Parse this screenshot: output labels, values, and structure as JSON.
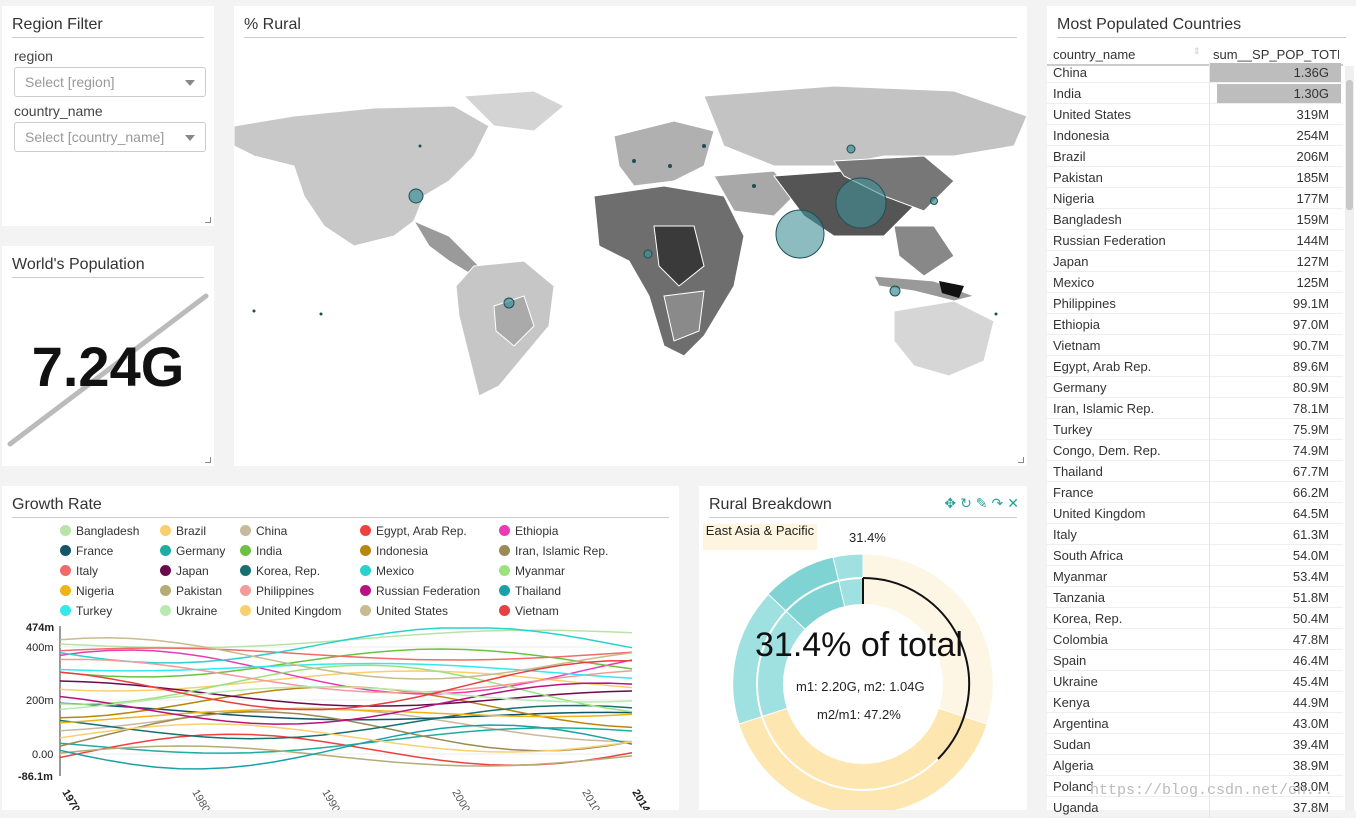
{
  "region_filter": {
    "title": "Region Filter",
    "region_label": "region",
    "region_placeholder": "Select [region]",
    "country_label": "country_name",
    "country_placeholder": "Select [country_name]"
  },
  "world_population": {
    "title": "World's Population",
    "value": "7.24G"
  },
  "rural_map": {
    "title": "% Rural"
  },
  "growth_rate": {
    "title": "Growth Rate",
    "legend": [
      {
        "name": "Bangladesh",
        "color": "#b7e4a6"
      },
      {
        "name": "Brazil",
        "color": "#f8cf6b"
      },
      {
        "name": "China",
        "color": "#c7b99c"
      },
      {
        "name": "Egypt, Arab Rep.",
        "color": "#ef4040"
      },
      {
        "name": "Ethiopia",
        "color": "#ea3bb4"
      },
      {
        "name": "France",
        "color": "#125566"
      },
      {
        "name": "Germany",
        "color": "#20aca0"
      },
      {
        "name": "India",
        "color": "#6ac240"
      },
      {
        "name": "Indonesia",
        "color": "#b8860b"
      },
      {
        "name": "Iran, Islamic Rep.",
        "color": "#9a8a56"
      },
      {
        "name": "Italy",
        "color": "#f06a6a"
      },
      {
        "name": "Japan",
        "color": "#6a0a4a"
      },
      {
        "name": "Korea, Rep.",
        "color": "#16706f"
      },
      {
        "name": "Mexico",
        "color": "#2cd0cc"
      },
      {
        "name": "Myanmar",
        "color": "#9be27e"
      },
      {
        "name": "Nigeria",
        "color": "#f0b21b"
      },
      {
        "name": "Pakistan",
        "color": "#b3ac74"
      },
      {
        "name": "Philippines",
        "color": "#f59a9a"
      },
      {
        "name": "Russian Federation",
        "color": "#b8127f"
      },
      {
        "name": "Thailand",
        "color": "#1aa0a8"
      },
      {
        "name": "Turkey",
        "color": "#35e8ea"
      },
      {
        "name": "Ukraine",
        "color": "#b9e9b0"
      },
      {
        "name": "United Kingdom",
        "color": "#f8d06e"
      },
      {
        "name": "United States",
        "color": "#c8bb90"
      },
      {
        "name": "Vietnam",
        "color": "#e84040"
      }
    ],
    "y_ticks": [
      "474m",
      "400m",
      "200m",
      "0.00",
      "-86.1m"
    ],
    "x_ticks": [
      "1970",
      "1980",
      "1990",
      "2000",
      "2010",
      "2014"
    ]
  },
  "rural_breakdown": {
    "title": "Rural Breakdown",
    "crumb": "East Asia & Pacific",
    "crumb_pct": "31.4%",
    "center_main": "31.4% of total",
    "center_m": "m1: 2.20G, m2: 1.04G",
    "center_ratio": "m2/m1: 47.2%"
  },
  "most_populated": {
    "title": "Most Populated Countries",
    "col_name": "country_name",
    "col_value": "sum__SP_POP_TOTL",
    "rows": [
      {
        "name": "China",
        "value": "1.36G",
        "frac": 1.0
      },
      {
        "name": "India",
        "value": "1.30G",
        "frac": 0.95
      },
      {
        "name": "United States",
        "value": "319M",
        "frac": 0.0
      },
      {
        "name": "Indonesia",
        "value": "254M",
        "frac": 0.0
      },
      {
        "name": "Brazil",
        "value": "206M",
        "frac": 0.0
      },
      {
        "name": "Pakistan",
        "value": "185M",
        "frac": 0.0
      },
      {
        "name": "Nigeria",
        "value": "177M",
        "frac": 0.0
      },
      {
        "name": "Bangladesh",
        "value": "159M",
        "frac": 0.0
      },
      {
        "name": "Russian Federation",
        "value": "144M",
        "frac": 0.0
      },
      {
        "name": "Japan",
        "value": "127M",
        "frac": 0.0
      },
      {
        "name": "Mexico",
        "value": "125M",
        "frac": 0.0
      },
      {
        "name": "Philippines",
        "value": "99.1M",
        "frac": 0.0
      },
      {
        "name": "Ethiopia",
        "value": "97.0M",
        "frac": 0.0
      },
      {
        "name": "Vietnam",
        "value": "90.7M",
        "frac": 0.0
      },
      {
        "name": "Egypt, Arab Rep.",
        "value": "89.6M",
        "frac": 0.0
      },
      {
        "name": "Germany",
        "value": "80.9M",
        "frac": 0.0
      },
      {
        "name": "Iran, Islamic Rep.",
        "value": "78.1M",
        "frac": 0.0
      },
      {
        "name": "Turkey",
        "value": "75.9M",
        "frac": 0.0
      },
      {
        "name": "Congo, Dem. Rep.",
        "value": "74.9M",
        "frac": 0.0
      },
      {
        "name": "Thailand",
        "value": "67.7M",
        "frac": 0.0
      },
      {
        "name": "France",
        "value": "66.2M",
        "frac": 0.0
      },
      {
        "name": "United Kingdom",
        "value": "64.5M",
        "frac": 0.0
      },
      {
        "name": "Italy",
        "value": "61.3M",
        "frac": 0.0
      },
      {
        "name": "South Africa",
        "value": "54.0M",
        "frac": 0.0
      },
      {
        "name": "Myanmar",
        "value": "53.4M",
        "frac": 0.0
      },
      {
        "name": "Tanzania",
        "value": "51.8M",
        "frac": 0.0
      },
      {
        "name": "Korea, Rep.",
        "value": "50.4M",
        "frac": 0.0
      },
      {
        "name": "Colombia",
        "value": "47.8M",
        "frac": 0.0
      },
      {
        "name": "Spain",
        "value": "46.4M",
        "frac": 0.0
      },
      {
        "name": "Ukraine",
        "value": "45.4M",
        "frac": 0.0
      },
      {
        "name": "Kenya",
        "value": "44.9M",
        "frac": 0.0
      },
      {
        "name": "Argentina",
        "value": "43.0M",
        "frac": 0.0
      },
      {
        "name": "Sudan",
        "value": "39.4M",
        "frac": 0.0
      },
      {
        "name": "Algeria",
        "value": "38.9M",
        "frac": 0.0
      },
      {
        "name": "Poland",
        "value": "38.0M",
        "frac": 0.0
      },
      {
        "name": "Uganda",
        "value": "37.8M",
        "frac": 0.0
      }
    ]
  },
  "watermark": "https://blog.csdn.net/cn..."
}
